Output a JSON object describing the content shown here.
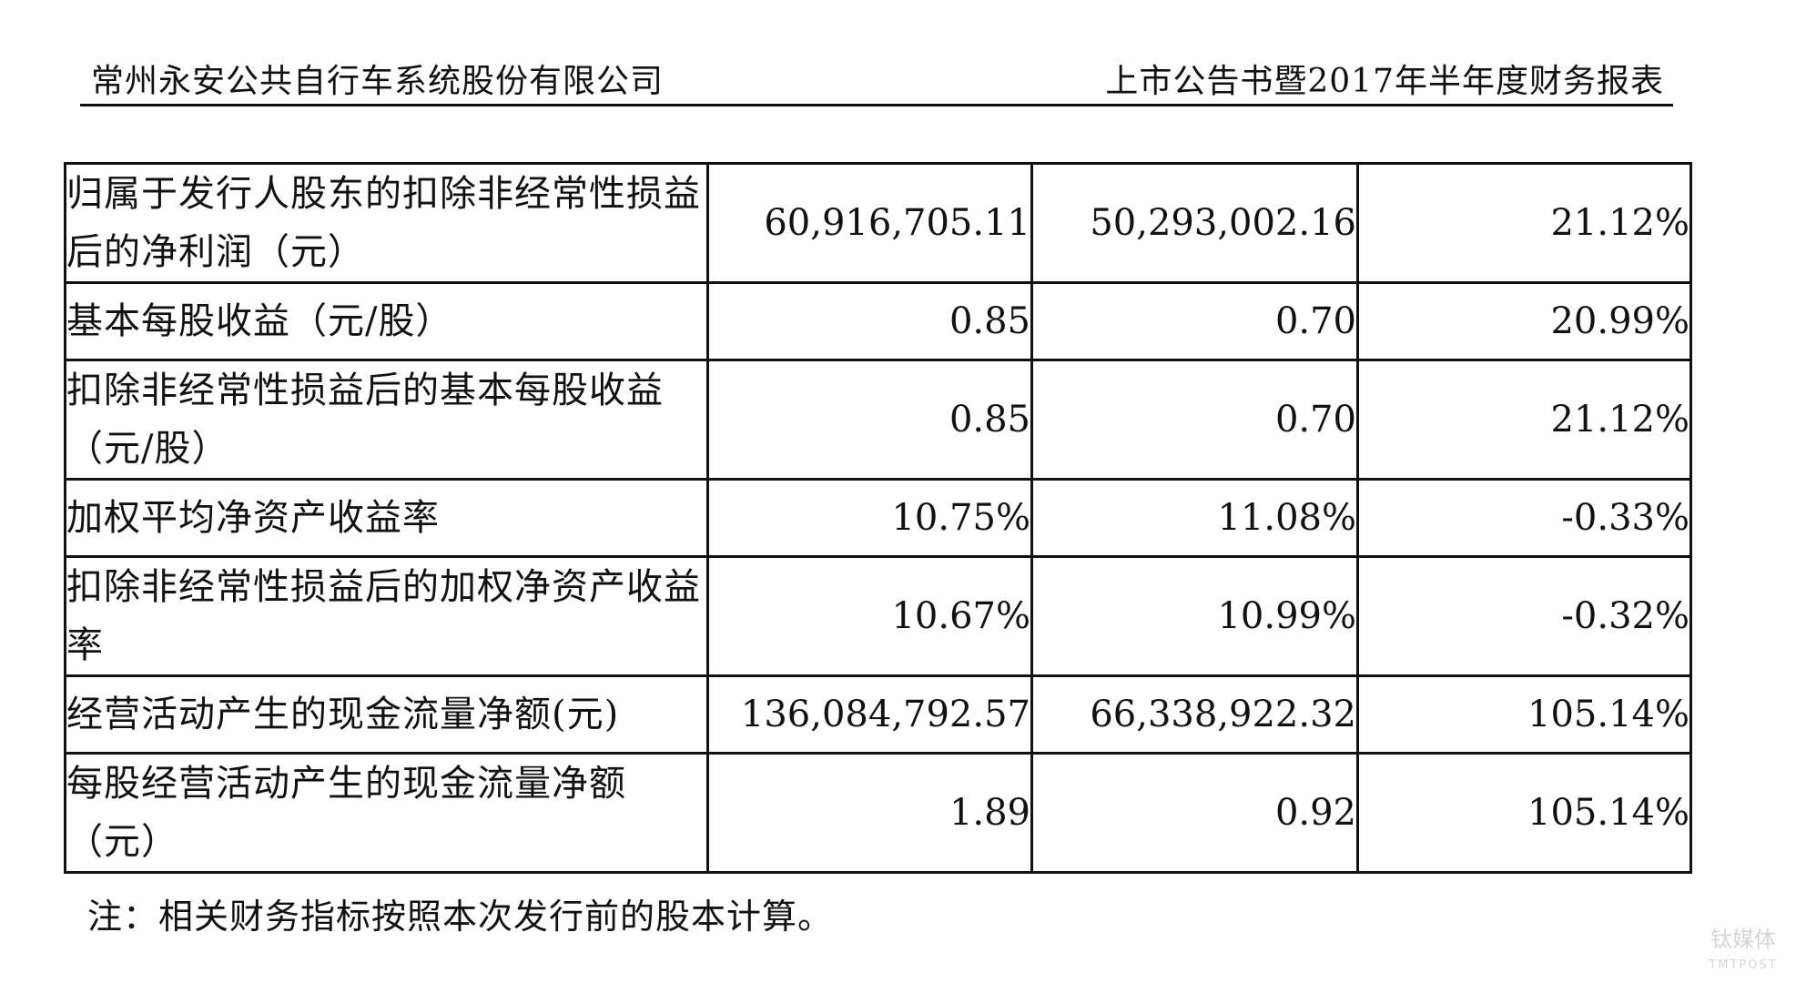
{
  "header": {
    "company": "常州永安公共自行车系统股份有限公司",
    "doc_title": "上市公告书暨2017年半年度财务报表"
  },
  "table": {
    "rows": [
      {
        "label": "归属于发行人股东的扣除非经常性损益后的净利润（元）",
        "v1": "60,916,705.11",
        "v2": "50,293,002.16",
        "v3": "21.12%"
      },
      {
        "label": "基本每股收益（元/股）",
        "v1": "0.85",
        "v2": "0.70",
        "v3": "20.99%"
      },
      {
        "label": "扣除非经常性损益后的基本每股收益（元/股）",
        "v1": "0.85",
        "v2": "0.70",
        "v3": "21.12%"
      },
      {
        "label": "加权平均净资产收益率",
        "v1": "10.75%",
        "v2": "11.08%",
        "v3": "-0.33%"
      },
      {
        "label": "扣除非经常性损益后的加权净资产收益率",
        "v1": "10.67%",
        "v2": "10.99%",
        "v3": "-0.32%"
      },
      {
        "label": "经营活动产生的现金流量净额(元)",
        "v1": "136,084,792.57",
        "v2": "66,338,922.32",
        "v3": "105.14%"
      },
      {
        "label": "每股经营活动产生的现金流量净额（元）",
        "v1": "1.89",
        "v2": "0.92",
        "v3": "105.14%"
      }
    ]
  },
  "note": "注：相关财务指标按照本次发行前的股本计算。",
  "watermark": {
    "brand_cn": "钛媒体",
    "brand_en": "TMTPOST"
  }
}
